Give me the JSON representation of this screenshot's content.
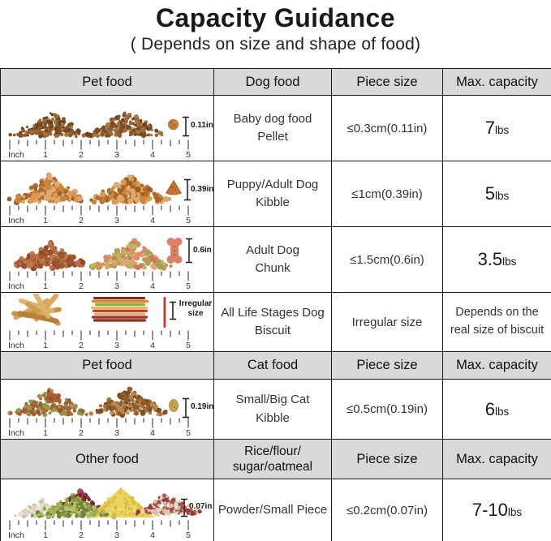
{
  "title": "Capacity Guidance",
  "subtitle": "( Depends on size and shape of food)",
  "colors": {
    "header_bg": "#d9d9d9",
    "border": "#1a1a1a",
    "biscuit_red": "#c0392b"
  },
  "ruler": {
    "unit_label": "Inch",
    "marks": [
      "1",
      "2",
      "3",
      "4",
      "5"
    ]
  },
  "sections": [
    {
      "header": {
        "pet": "Pet food",
        "food": "Dog food",
        "piece": "Piece size",
        "capacity": "Max. capacity"
      },
      "rows": [
        {
          "sample_size_label": "0.11in",
          "name_line1": "Baby dog food",
          "name_line2": "Pellet",
          "piece_size": "≤0.3cm(0.11in)",
          "capacity_value": "7",
          "capacity_unit": "lbs"
        },
        {
          "sample_size_label": "0.39in",
          "name_line1": "Puppy/Adult Dog",
          "name_line2": "Kibble",
          "piece_size": "≤1cm(0.39in)",
          "capacity_value": "5",
          "capacity_unit": "lbs"
        },
        {
          "sample_size_label": "0.6in",
          "name_line1": "Adult Dog",
          "name_line2": "Chunk",
          "piece_size": "≤1.5cm(0.6in)",
          "capacity_value": "3.5",
          "capacity_unit": "lbs"
        },
        {
          "sample_size_label_line1": "Irregular",
          "sample_size_label_line2": "size",
          "name_line1": "All Life Stages Dog",
          "name_line2": "Biscuit",
          "piece_size": "Irregular size",
          "capacity_text_line1": "Depends on the",
          "capacity_text_line2": "real size of biscuit"
        }
      ]
    },
    {
      "header": {
        "pet": "Pet food",
        "food": "Cat food",
        "piece": "Piece size",
        "capacity": "Max. capacity"
      },
      "rows": [
        {
          "sample_size_label": "0.19in",
          "name_line1": "Small/Big Cat",
          "name_line2": "Kibble",
          "piece_size": "≤0.5cm(0.19in)",
          "capacity_value": "6",
          "capacity_unit": "lbs"
        }
      ]
    },
    {
      "header": {
        "pet": "Other food",
        "food_line1": "Rice/flour/",
        "food_line2": "sugar/oatmeal",
        "piece": "Piece size",
        "capacity": "Max. capacity"
      },
      "rows": [
        {
          "sample_size_label": "0.07in",
          "name_line1": "Powder/Small Piece",
          "name_line2": "",
          "piece_size": "≤0.2cm(0.07in)",
          "capacity_value": "7-10",
          "capacity_unit": "lbs"
        }
      ]
    }
  ],
  "chart_data": {
    "type": "table",
    "title": "Capacity Guidance",
    "subtitle": "( Depends on size and shape of food)",
    "sections": [
      {
        "columns": [
          "Pet food",
          "Dog food",
          "Piece size",
          "Max. capacity"
        ],
        "rows": [
          [
            "Baby dog food Pellet",
            "≤0.3cm(0.11in)",
            "7lbs"
          ],
          [
            "Puppy/Adult Dog Kibble",
            "≤1cm(0.39in)",
            "5lbs"
          ],
          [
            "Adult Dog Chunk",
            "≤1.5cm(0.6in)",
            "3.5lbs"
          ],
          [
            "All Life Stages Dog Biscuit",
            "Irregular size",
            "Depends on the real size of biscuit"
          ]
        ]
      },
      {
        "columns": [
          "Pet food",
          "Cat food",
          "Piece size",
          "Max. capacity"
        ],
        "rows": [
          [
            "Small/Big Cat Kibble",
            "≤0.5cm(0.19in)",
            "6lbs"
          ]
        ]
      },
      {
        "columns": [
          "Other food",
          "Rice/flour/sugar/oatmeal",
          "Piece size",
          "Max. capacity"
        ],
        "rows": [
          [
            "Powder/Small Piece",
            "≤0.2cm(0.07in)",
            "7-10lbs"
          ]
        ]
      }
    ]
  }
}
